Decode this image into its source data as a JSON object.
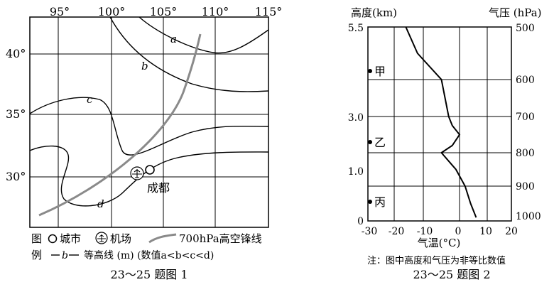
{
  "figure1": {
    "lon_labels": [
      "95°",
      "100°",
      "105°",
      "110°",
      "115°"
    ],
    "lat_labels": [
      "40°",
      "35°",
      "30°"
    ],
    "contour_labels": [
      "a",
      "b",
      "c",
      "d"
    ],
    "city_label": "成都",
    "legend": {
      "title_top": "图",
      "title_bottom": "例",
      "city": "城市",
      "airport": "机场",
      "front": "700hPa高空锋线",
      "contour_sample": "b",
      "contour_desc": "等高线 (m)  (数值a<b<c<d)"
    },
    "caption": "23～25 题图 1"
  },
  "figure2": {
    "left_axis_title": "高度(km)",
    "right_axis_title": "气压  (hPa)",
    "height_ticks": [
      "5.5",
      "3.0",
      "1.0",
      "0"
    ],
    "pressure_ticks": [
      "500",
      "600",
      "700",
      "800",
      "900",
      "1000"
    ],
    "temp_ticks": [
      "-30",
      "-20",
      "-10",
      "0",
      "10",
      "20"
    ],
    "x_axis_title": "气温(°C)",
    "points": [
      "甲",
      "乙",
      "丙"
    ],
    "note": "注：图中高度和气压为非等比数值",
    "caption": "23～25 题图 2",
    "chart_data": {
      "type": "line",
      "xlabel": "气温(°C)",
      "ylabel": "气压 (hPa)",
      "xlim": [
        -30,
        20
      ],
      "series": [
        {
          "pressure_hPa": [
            500,
            550,
            600,
            650,
            700,
            725,
            750,
            780,
            800,
            850,
            900,
            950,
            990
          ],
          "temp_C": [
            -16,
            -12,
            -5,
            -4,
            -3,
            -2,
            0,
            -2,
            -5,
            -1,
            2,
            4,
            6
          ]
        }
      ]
    }
  }
}
